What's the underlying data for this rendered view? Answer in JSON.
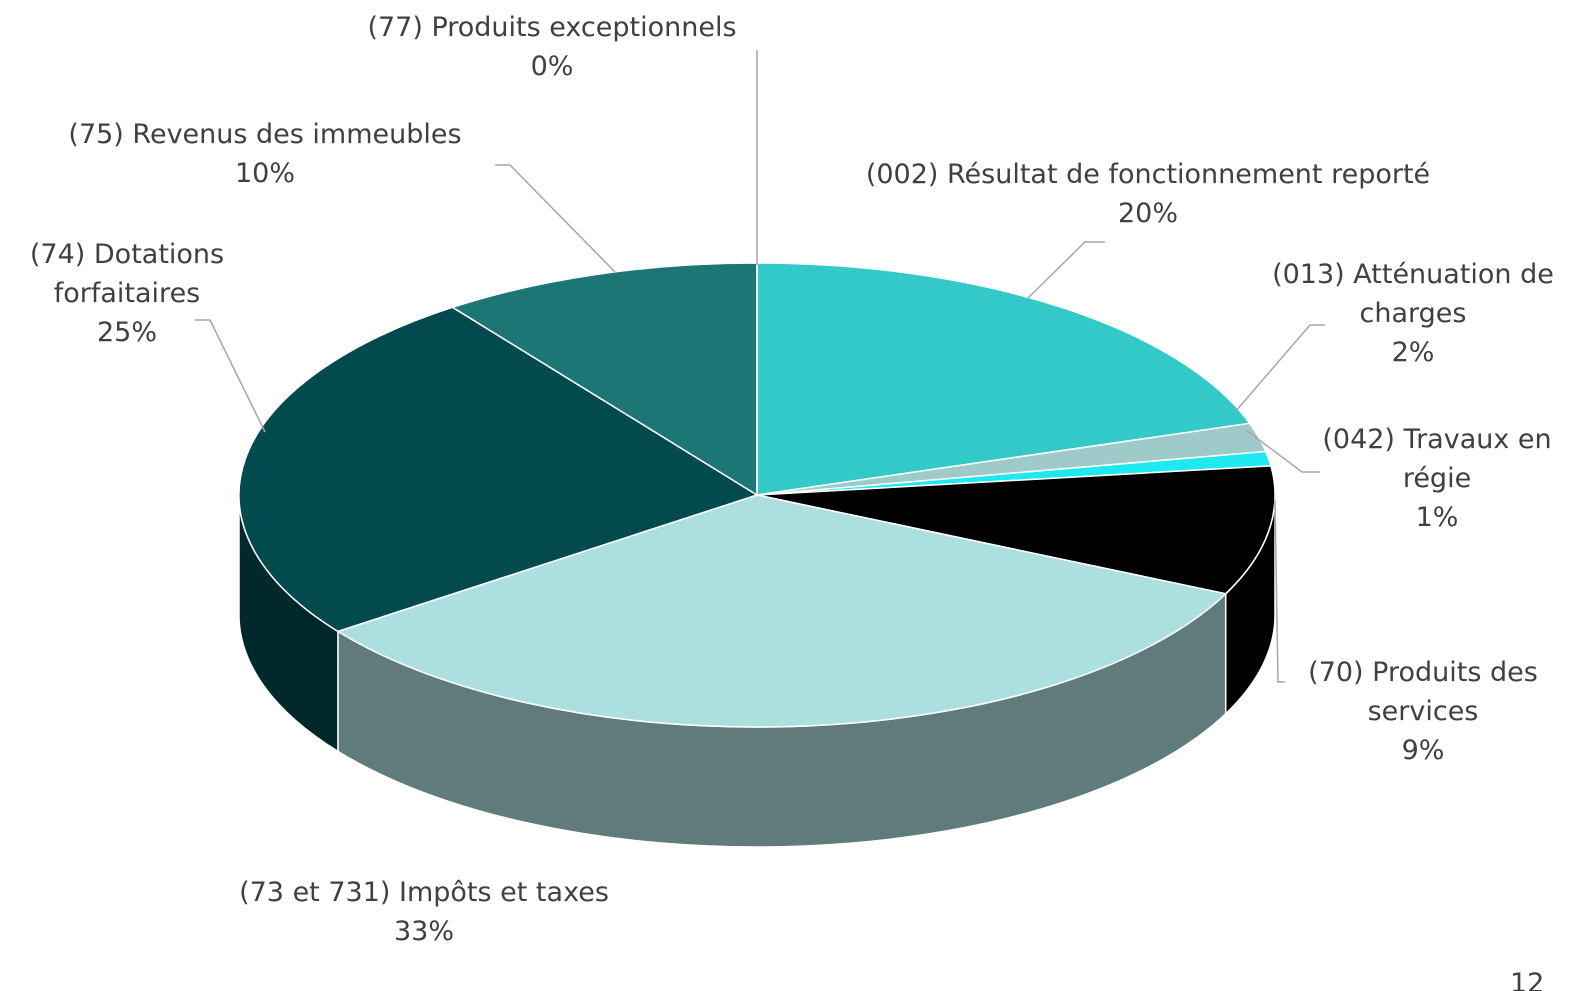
{
  "chart_data": {
    "type": "pie3d",
    "categories": [
      "(002) Résultat de fonctionnement reporté",
      "(013) Atténuation de charges",
      "(042) Travaux en régie",
      "(70) Produits des services",
      "(73 et 731) Impôts et taxes",
      "(74) Dotations forfaitaires",
      "(75) Revenus des immeubles",
      "(77) Produits exceptionnels"
    ],
    "values": [
      20,
      2,
      1,
      9,
      33,
      25,
      10,
      0
    ],
    "value_labels": [
      "20%",
      "2%",
      "1%",
      "9%",
      "33%",
      "25%",
      "10%",
      "0%"
    ],
    "colors": [
      "#33c9c9",
      "#9fcaca",
      "#1ee8f0",
      "#000000",
      "#acdfe0",
      "#024a4e",
      "#1d7676",
      "#d9d9d9"
    ]
  },
  "page_number": "12"
}
